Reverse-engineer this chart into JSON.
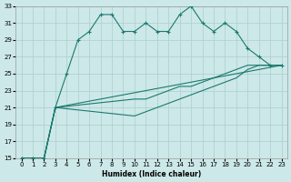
{
  "xlabel": "Humidex (Indice chaleur)",
  "bg_color": "#cde8e8",
  "line_color": "#1a7a6e",
  "grid_color": "#aacfcf",
  "xlim": [
    -0.5,
    23.5
  ],
  "ylim": [
    15,
    33
  ],
  "xticks": [
    0,
    1,
    2,
    3,
    4,
    5,
    6,
    7,
    8,
    9,
    10,
    11,
    12,
    13,
    14,
    15,
    16,
    17,
    18,
    19,
    20,
    21,
    22,
    23
  ],
  "yticks": [
    15,
    17,
    19,
    21,
    23,
    25,
    27,
    29,
    31,
    33
  ],
  "series_marked": {
    "x": [
      0,
      1,
      2,
      3,
      4,
      5,
      6,
      7,
      8,
      9,
      10,
      11,
      12,
      13,
      14,
      15,
      16,
      17,
      18,
      19,
      20,
      21,
      22,
      23
    ],
    "y": [
      15,
      15,
      15,
      21,
      25,
      29,
      30,
      32,
      32,
      30,
      30,
      31,
      30,
      30,
      32,
      33,
      31,
      30,
      31,
      30,
      28,
      27,
      26,
      26
    ]
  },
  "line1": {
    "x": [
      0,
      1,
      2,
      3,
      23
    ],
    "y": [
      15,
      15,
      15,
      21,
      26
    ]
  },
  "line2": {
    "x": [
      0,
      1,
      2,
      3,
      10,
      11,
      12,
      13,
      14,
      15,
      16,
      17,
      18,
      19,
      20,
      21,
      22,
      23
    ],
    "y": [
      15,
      15,
      15,
      21,
      22,
      22,
      22.5,
      23,
      23.5,
      23.5,
      24,
      24.5,
      25,
      25.5,
      26,
      26,
      26,
      26
    ]
  },
  "line3": {
    "x": [
      0,
      1,
      2,
      3,
      10,
      11,
      12,
      13,
      14,
      15,
      16,
      17,
      18,
      19,
      20,
      21,
      22,
      23
    ],
    "y": [
      15,
      15,
      15,
      21,
      20,
      20.5,
      21,
      21.5,
      22,
      22.5,
      23,
      23.5,
      24,
      24.5,
      25.5,
      26,
      26,
      26
    ]
  }
}
